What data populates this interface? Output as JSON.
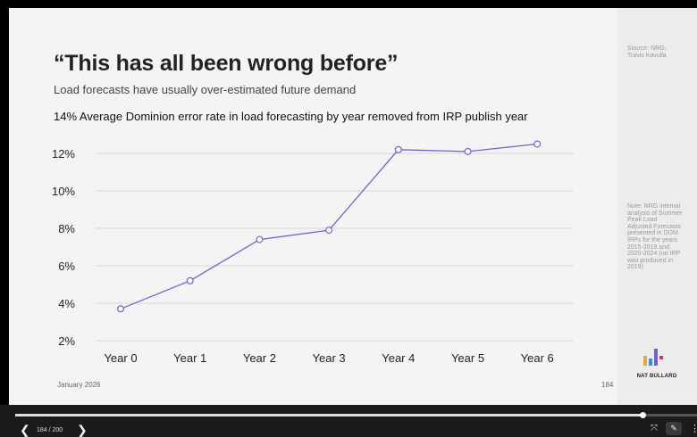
{
  "slide": {
    "title": "“This has all been wrong before”",
    "subtitle": "Load forecasts have usually over-estimated future demand",
    "chart_heading": "14% Average Dominion error rate in load forecasting by year removed from IRP publish year",
    "footer_date": "January 2026",
    "page_number": "184",
    "source": "Source: NRG, Travis Kavulla",
    "note": "Note: NRG internal analysis of Summer Peak Load Adjusted Forecasts presented in DOM IRPs for the years 2015-2018 and 2020-2024 (no IRP was produced in 2019)",
    "brand": "NAT BULLARD"
  },
  "chart_data": {
    "type": "line",
    "title": "14% Average Dominion error rate in load forecasting by year removed from IRP publish year",
    "categories": [
      "Year 0",
      "Year 1",
      "Year 2",
      "Year 3",
      "Year 4",
      "Year 5",
      "Year 6"
    ],
    "values": [
      3.7,
      5.2,
      7.4,
      7.9,
      12.2,
      12.1,
      12.5
    ],
    "y_ticks": [
      "2%",
      "4%",
      "6%",
      "8%",
      "10%",
      "12%"
    ],
    "y_tick_values": [
      2,
      4,
      6,
      8,
      10,
      12
    ],
    "ylim": [
      2,
      12.5
    ],
    "xlabel": "",
    "ylabel": "",
    "grid": true,
    "line_color": "#6b64cf",
    "marker_fill": "#ffffff"
  },
  "player": {
    "page_counter": "184 / 200",
    "current": 184,
    "total": 200,
    "prev_icon": "❮",
    "next_icon": "❯",
    "fit_icon": "⤧",
    "pen_icon": "✎",
    "more_icon": "⋮"
  },
  "colors": {
    "slide_bg": "#f4f4f4",
    "side_panel_bg": "#ececec",
    "logo_bars": [
      "#e8a93a",
      "#3c8fd6",
      "#6b64cf",
      "#e0334d"
    ]
  }
}
